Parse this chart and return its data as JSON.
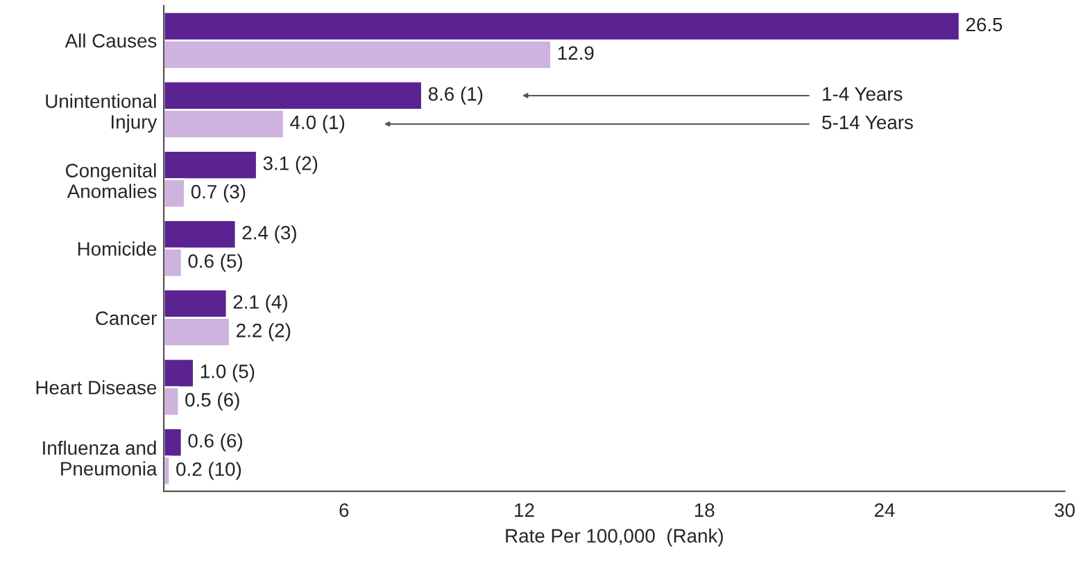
{
  "chart_data": {
    "type": "bar",
    "orientation": "horizontal",
    "xlabel": "Rate Per 100,000  (Rank)",
    "categories": [
      "All Causes",
      "Unintentional\nInjury",
      "Congenital\nAnomalies",
      "Homicide",
      "Cancer",
      "Heart Disease",
      "Influenza and\nPneumonia"
    ],
    "series": [
      {
        "name": "1-4 Years",
        "color": "#5b2391",
        "values": [
          26.5,
          8.6,
          3.1,
          2.4,
          2.1,
          1.0,
          0.6
        ],
        "value_labels": [
          "26.5",
          "8.6 (1)",
          "3.1 (2)",
          "2.4 (3)",
          "2.1 (4)",
          "1.0 (5)",
          "0.6 (6)"
        ]
      },
      {
        "name": "5-14 Years",
        "color": "#cdb3de",
        "values": [
          12.9,
          4.0,
          0.7,
          0.6,
          2.2,
          0.5,
          0.2
        ],
        "value_labels": [
          "12.9",
          "4.0 (1)",
          "0.7 (3)",
          "0.6 (5)",
          "2.2 (2)",
          "0.5 (6)",
          "0.2 (10)"
        ]
      }
    ],
    "xlim": [
      0,
      30
    ],
    "xticks": [
      6,
      12,
      18,
      24,
      30
    ],
    "grid": false,
    "legend": false
  }
}
